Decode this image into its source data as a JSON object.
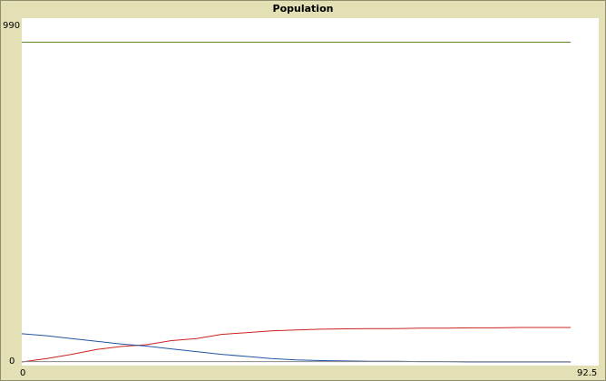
{
  "window": {
    "title": "Population"
  },
  "chart_data": {
    "type": "line",
    "title": "Population",
    "xlabel": "",
    "ylabel": "",
    "xlim": [
      0,
      92.5
    ],
    "ylim": [
      0,
      990
    ],
    "x_tick_labels": [
      "0",
      "92.5"
    ],
    "y_tick_labels": [
      "0",
      "990"
    ],
    "grid": false,
    "series": [
      {
        "color": "#5a8a1e",
        "x": [
          0,
          88
        ],
        "y": [
          928,
          928
        ]
      },
      {
        "color": "#cc2222",
        "x": [
          0,
          4,
          8,
          12,
          16,
          20,
          24,
          28,
          32,
          36,
          40,
          44,
          48,
          52,
          56,
          60,
          64,
          68,
          72,
          76,
          80,
          84,
          88
        ],
        "y": [
          0,
          10,
          22,
          36,
          45,
          50,
          62,
          68,
          80,
          85,
          90,
          93,
          95,
          96,
          97,
          97,
          98,
          98,
          99,
          99,
          100,
          100,
          100
        ]
      },
      {
        "color": "#2255a0",
        "x": [
          0,
          4,
          8,
          12,
          16,
          20,
          24,
          28,
          32,
          36,
          40,
          44,
          48,
          52,
          56,
          60,
          64,
          68,
          72,
          76,
          80,
          84,
          88
        ],
        "y": [
          82,
          76,
          68,
          60,
          52,
          46,
          38,
          30,
          22,
          16,
          10,
          6,
          4,
          3,
          2,
          2,
          1,
          1,
          0,
          0,
          0,
          0,
          0
        ]
      },
      {
        "color": "#888888",
        "x": [
          0,
          88
        ],
        "y": [
          1,
          1
        ]
      }
    ]
  }
}
